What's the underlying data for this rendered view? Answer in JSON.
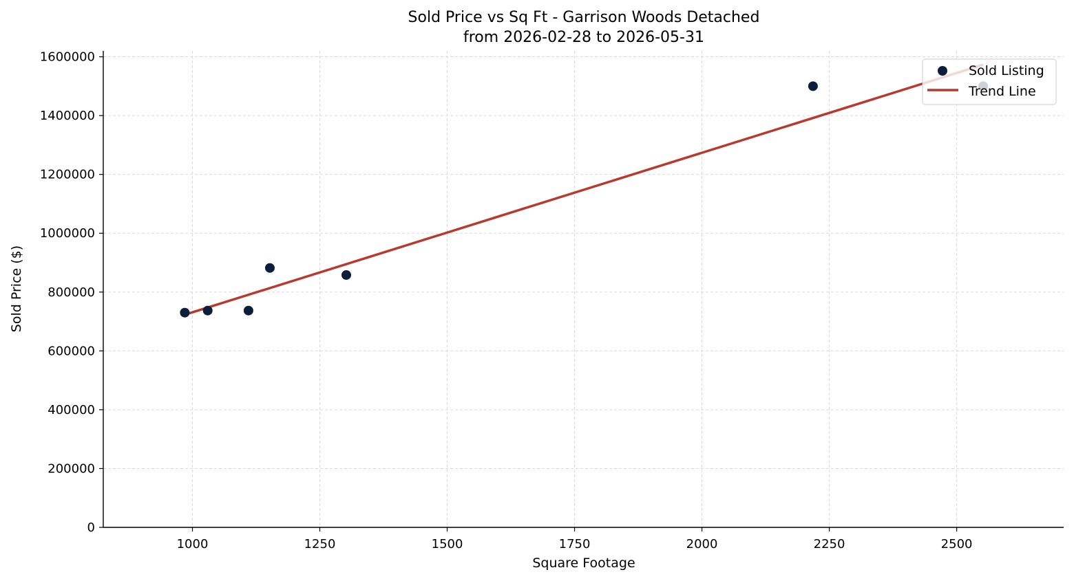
{
  "chart_data": {
    "type": "scatter",
    "title_line1": "Sold Price vs Sq Ft - Garrison Woods Detached",
    "title_line2": "from 2026-02-28 to 2026-05-31",
    "xlabel": "Square Footage",
    "ylabel": "Sold Price ($)",
    "xlim": [
      825,
      2710
    ],
    "ylim": [
      0,
      1620000
    ],
    "xticks": [
      1000,
      1250,
      1500,
      1750,
      2000,
      2250,
      2500
    ],
    "xtick_labels": [
      "1000",
      "1250",
      "1500",
      "1750",
      "2000",
      "2250",
      "2500"
    ],
    "yticks": [
      0,
      200000,
      400000,
      600000,
      800000,
      1000000,
      1200000,
      1400000,
      1600000
    ],
    "ytick_labels": [
      "0",
      "200000",
      "400000",
      "600000",
      "800000",
      "1000000",
      "1200000",
      "1400000",
      "1600000"
    ],
    "grid": true,
    "legend_position": "top-right",
    "series": [
      {
        "name": "Sold Listing",
        "kind": "scatter",
        "color": "#0b1e3a",
        "points": [
          {
            "x": 985,
            "y": 730000
          },
          {
            "x": 1030,
            "y": 737000
          },
          {
            "x": 1110,
            "y": 737000
          },
          {
            "x": 1152,
            "y": 882000
          },
          {
            "x": 1302,
            "y": 858000
          },
          {
            "x": 2218,
            "y": 1500000
          },
          {
            "x": 2552,
            "y": 1500000
          }
        ]
      },
      {
        "name": "Trend Line",
        "kind": "line",
        "color": "#b83a2e",
        "points": [
          {
            "x": 985,
            "y": 723000
          },
          {
            "x": 2552,
            "y": 1573000
          }
        ]
      }
    ]
  }
}
